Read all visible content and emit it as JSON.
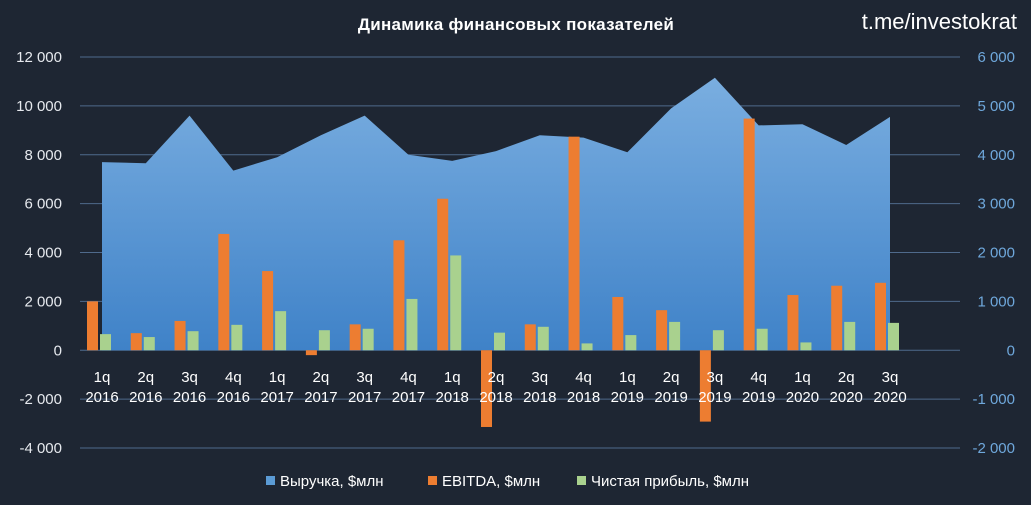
{
  "chart_data": {
    "type": "bar",
    "title": "Динамика финансовых показателей",
    "watermark": "t.me/investokrat",
    "categories": [
      [
        "1q",
        "2016"
      ],
      [
        "2q",
        "2016"
      ],
      [
        "3q",
        "2016"
      ],
      [
        "4q",
        "2016"
      ],
      [
        "1q",
        "2017"
      ],
      [
        "2q",
        "2017"
      ],
      [
        "3q",
        "2017"
      ],
      [
        "4q",
        "2017"
      ],
      [
        "1q",
        "2018"
      ],
      [
        "2q",
        "2018"
      ],
      [
        "3q",
        "2018"
      ],
      [
        "4q",
        "2018"
      ],
      [
        "1q",
        "2019"
      ],
      [
        "2q",
        "2019"
      ],
      [
        "3q",
        "2019"
      ],
      [
        "4q",
        "2019"
      ],
      [
        "1q",
        "2020"
      ],
      [
        "2q",
        "2020"
      ],
      [
        "3q",
        "2020"
      ]
    ],
    "series": [
      {
        "name": "Выручка, $млн",
        "type": "area",
        "color": "#5b9bd5",
        "axis": "left",
        "values": [
          7700,
          7650,
          9600,
          7350,
          7900,
          8800,
          9600,
          8000,
          7750,
          8150,
          8800,
          8700,
          8100,
          9900,
          11150,
          9200,
          9250,
          8400,
          9550
        ]
      },
      {
        "name": "EBITDA, $млн",
        "type": "bar",
        "color": "#ed7d31",
        "axis": "right",
        "values": [
          1000,
          350,
          600,
          2380,
          1620,
          -100,
          530,
          2250,
          3100,
          -1570,
          530,
          4370,
          1090,
          820,
          -1460,
          4740,
          1130,
          1320,
          1380
        ]
      },
      {
        "name": "Чистая прибыль, $млн",
        "type": "bar",
        "color": "#a9d18e",
        "axis": "right",
        "values": [
          330,
          270,
          390,
          520,
          800,
          410,
          440,
          1050,
          1940,
          360,
          480,
          140,
          310,
          580,
          410,
          440,
          160,
          580,
          560
        ]
      }
    ],
    "y_left": {
      "min": -4000,
      "max": 12000,
      "ticks": [
        "-4 000",
        "-2 000",
        "0",
        "2 000",
        "4 000",
        "6 000",
        "8 000",
        "10 000",
        "12 000"
      ]
    },
    "y_right": {
      "min": -2000,
      "max": 6000,
      "ticks": [
        "-2 000",
        "-1 000",
        "0",
        "1 000",
        "2 000",
        "3 000",
        "4 000",
        "5 000",
        "6 000"
      ]
    },
    "grid": true,
    "legend_position": "bottom"
  }
}
